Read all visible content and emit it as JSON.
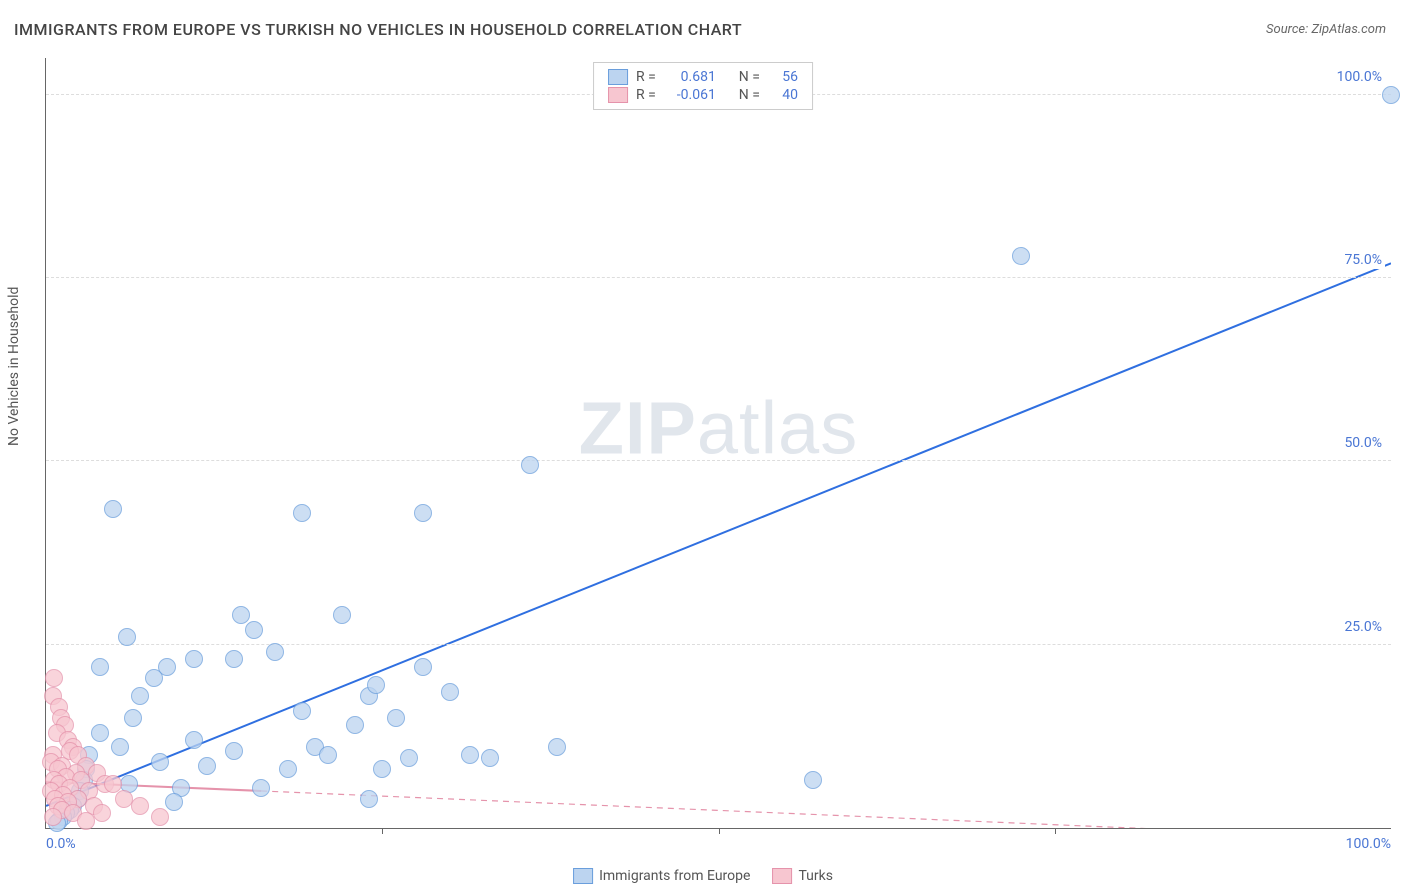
{
  "title": "IMMIGRANTS FROM EUROPE VS TURKISH NO VEHICLES IN HOUSEHOLD CORRELATION CHART",
  "source_prefix": "Source: ",
  "source": "ZipAtlas.com",
  "ylabel": "No Vehicles in Household",
  "watermark_a": "ZIP",
  "watermark_b": "atlas",
  "chart": {
    "type": "scatter",
    "xlim": [
      0,
      100
    ],
    "ylim": [
      0,
      105
    ],
    "xticks": [
      0,
      100
    ],
    "xtick_labels": [
      "0.0%",
      "100.0%"
    ],
    "xtick_marks": [
      25,
      50,
      75
    ],
    "yticks": [
      25,
      50,
      75,
      100
    ],
    "ytick_labels": [
      "25.0%",
      "50.0%",
      "75.0%",
      "100.0%"
    ],
    "grid_color": "#dddddd",
    "background": "#ffffff",
    "axis_color": "#666666",
    "tick_label_color": "#4a76d4",
    "label_fontsize": 14,
    "title_fontsize": 16,
    "marker_radius": 9,
    "marker_border": 1.2,
    "series": [
      {
        "name": "Immigrants from Europe",
        "fill": "#bcd4f0",
        "stroke": "#6a9edc",
        "fill_opacity": 0.75,
        "R": "0.681",
        "N": "56",
        "trend": {
          "x1": 0,
          "y1": 3,
          "x2": 100,
          "y2": 77,
          "color": "#2f6fe0",
          "width": 2,
          "dash": "none"
        },
        "points": [
          [
            100,
            100
          ],
          [
            72.5,
            78
          ],
          [
            5,
            43.5
          ],
          [
            19,
            43
          ],
          [
            28,
            43
          ],
          [
            36,
            49.5
          ],
          [
            14.5,
            29
          ],
          [
            15.5,
            27
          ],
          [
            22,
            29
          ],
          [
            17,
            24
          ],
          [
            14,
            23
          ],
          [
            11,
            23
          ],
          [
            9,
            22
          ],
          [
            8,
            20.5
          ],
          [
            7,
            18
          ],
          [
            6.5,
            15
          ],
          [
            4,
            13
          ],
          [
            3.2,
            10
          ],
          [
            3,
            8
          ],
          [
            2.8,
            6.5
          ],
          [
            2.5,
            5
          ],
          [
            2.4,
            4
          ],
          [
            2,
            3
          ],
          [
            1.8,
            2.5
          ],
          [
            1.5,
            2
          ],
          [
            1.3,
            1.5
          ],
          [
            1,
            1
          ],
          [
            0.8,
            0.7
          ],
          [
            20,
            11
          ],
          [
            21,
            10
          ],
          [
            24,
            18
          ],
          [
            28,
            22
          ],
          [
            27,
            9.5
          ],
          [
            31.5,
            10
          ],
          [
            30,
            18.5
          ],
          [
            24,
            4
          ],
          [
            18,
            8
          ],
          [
            19,
            16
          ],
          [
            23,
            14
          ],
          [
            25,
            8
          ],
          [
            26,
            15
          ],
          [
            33,
            9.5
          ],
          [
            38,
            11
          ],
          [
            24.5,
            19.5
          ],
          [
            14,
            10.5
          ],
          [
            12,
            8.5
          ],
          [
            10,
            5.5
          ],
          [
            11,
            12
          ],
          [
            8.5,
            9
          ],
          [
            57,
            6.5
          ],
          [
            6,
            26
          ],
          [
            4,
            22
          ],
          [
            5.5,
            11
          ],
          [
            6.2,
            6
          ],
          [
            9.5,
            3.5
          ],
          [
            16,
            5.5
          ]
        ]
      },
      {
        "name": "Turks",
        "fill": "#f7c6d0",
        "stroke": "#e593ab",
        "fill_opacity": 0.75,
        "R": "-0.061",
        "N": "40",
        "trend": {
          "x1": 0,
          "y1": 6.3,
          "x2": 100,
          "y2": -1.5,
          "color": "#e593ab",
          "width": 1.2,
          "dash": "6 5"
        },
        "trend_solid_until_x": 16,
        "points": [
          [
            0.6,
            20.5
          ],
          [
            0.5,
            18
          ],
          [
            1,
            16.5
          ],
          [
            1.1,
            15
          ],
          [
            1.4,
            14
          ],
          [
            0.8,
            13
          ],
          [
            1.6,
            12
          ],
          [
            2,
            11
          ],
          [
            1.8,
            10.5
          ],
          [
            0.5,
            10
          ],
          [
            2.4,
            10
          ],
          [
            0.4,
            9
          ],
          [
            1.2,
            8.5
          ],
          [
            3,
            8.5
          ],
          [
            0.9,
            8
          ],
          [
            2.2,
            7.5
          ],
          [
            3.8,
            7.5
          ],
          [
            1.5,
            7
          ],
          [
            0.6,
            6.5
          ],
          [
            2.6,
            6.5
          ],
          [
            4.4,
            6
          ],
          [
            1,
            6
          ],
          [
            5,
            6
          ],
          [
            1.8,
            5.5
          ],
          [
            0.4,
            5
          ],
          [
            3.2,
            5
          ],
          [
            1.3,
            4.5
          ],
          [
            2.4,
            4
          ],
          [
            0.7,
            4
          ],
          [
            5.8,
            4
          ],
          [
            1.6,
            3.5
          ],
          [
            0.9,
            3
          ],
          [
            3.6,
            3
          ],
          [
            7,
            3
          ],
          [
            1.2,
            2.5
          ],
          [
            2,
            2
          ],
          [
            4.2,
            2
          ],
          [
            0.5,
            1.5
          ],
          [
            3,
            1
          ],
          [
            8.5,
            1.5
          ]
        ]
      }
    ]
  },
  "legend_top": {
    "R_label": "R =",
    "N_label": "N ="
  },
  "legend_bottom_labels": [
    "Immigrants from Europe",
    "Turks"
  ]
}
